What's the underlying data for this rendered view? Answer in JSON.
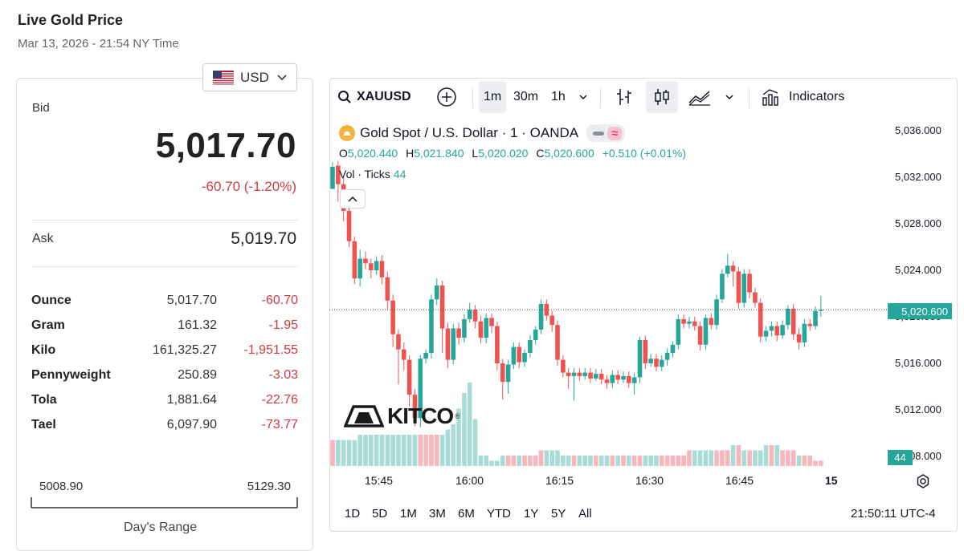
{
  "header": {
    "title": "Live Gold Price",
    "timestamp": "Mar 13, 2026 - 21:54 NY Time"
  },
  "currency": {
    "selected": "USD",
    "flag_icon": "us-flag-icon"
  },
  "quote": {
    "bid_label": "Bid",
    "bid": "5,017.70",
    "change": "-60.70 (-1.20%)",
    "ask_label": "Ask",
    "ask": "5,019.70"
  },
  "units": [
    {
      "name": "Ounce",
      "price": "5,017.70",
      "change": "-60.70"
    },
    {
      "name": "Gram",
      "price": "161.32",
      "change": "-1.95"
    },
    {
      "name": "Kilo",
      "price": "161,325.27",
      "change": "-1,951.55"
    },
    {
      "name": "Pennyweight",
      "price": "250.89",
      "change": "-3.03"
    },
    {
      "name": "Tola",
      "price": "1,881.64",
      "change": "-22.76"
    },
    {
      "name": "Tael",
      "price": "6,097.90",
      "change": "-73.77"
    }
  ],
  "days_range": {
    "low": "5008.90",
    "high": "5129.30",
    "label": "Day's Range"
  },
  "toolbar": {
    "symbol": "XAUUSD",
    "intervals": [
      "1m",
      "30m",
      "1h"
    ],
    "active_interval": "1m",
    "indicators_label": "Indicators"
  },
  "legend": {
    "title": "Gold Spot / U.S. Dollar · 1 · OANDA",
    "o_label": "O",
    "o": "5,020.440",
    "h_label": "H",
    "h": "5,021.840",
    "l_label": "L",
    "l": "5,020.020",
    "c_label": "C",
    "c": "5,020.600",
    "change": "+0.510 (+0.01%)",
    "vol_label": "Vol · Ticks",
    "vol": "44"
  },
  "logo": {
    "text": "KITCO",
    "reg": "®"
  },
  "chart_data": {
    "type": "candlestick",
    "symbol": "XAUUSD",
    "y_ticks": [
      "5,036.000",
      "5,032.000",
      "5,028.000",
      "5,024.000",
      "5,020.000",
      "5,016.000",
      "5,012.000",
      "5,008.000"
    ],
    "x_ticks": [
      "15:45",
      "16:00",
      "16:15",
      "16:30",
      "16:45",
      "15"
    ],
    "last_price": "5,020.600",
    "last_volume": "44",
    "ylim": [
      5008,
      5036
    ],
    "candles": [
      [
        5031.0,
        5032.9,
        5031.2,
        5033.3
      ],
      [
        5033.0,
        5031.4,
        5029.9,
        5033.4
      ],
      [
        5031.4,
        5029.1,
        5028.2,
        5032.0
      ],
      [
        5029.1,
        5026.5,
        5026.0,
        5029.7
      ],
      [
        5026.5,
        5023.3,
        5022.8,
        5026.9
      ],
      [
        5023.3,
        5025.0,
        5022.6,
        5025.8
      ],
      [
        5025.0,
        5024.6,
        5024.1,
        5025.6
      ],
      [
        5024.6,
        5024.0,
        5023.3,
        5025.0
      ],
      [
        5024.0,
        5024.8,
        5023.6,
        5025.2
      ],
      [
        5024.8,
        5023.4,
        5022.8,
        5025.3
      ],
      [
        5023.4,
        5021.4,
        5020.6,
        5023.9
      ],
      [
        5021.4,
        5018.5,
        5017.4,
        5021.9
      ],
      [
        5018.5,
        5017.2,
        5014.2,
        5018.9
      ],
      [
        5017.2,
        5016.3,
        5015.4,
        5017.8
      ],
      [
        5016.3,
        5013.3,
        5012.3,
        5016.7
      ],
      [
        5013.3,
        5011.3,
        5010.6,
        5013.8
      ],
      [
        5011.3,
        5016.4,
        5010.5,
        5016.7
      ],
      [
        5016.4,
        5016.9,
        5016.0,
        5017.2
      ],
      [
        5016.9,
        5021.5,
        5016.4,
        5021.9
      ],
      [
        5021.5,
        5022.7,
        5021.0,
        5023.3
      ],
      [
        5022.7,
        5019.0,
        5016.9,
        5023.1
      ],
      [
        5019.0,
        5016.3,
        5015.6,
        5019.5
      ],
      [
        5016.3,
        5019.0,
        5015.9,
        5019.4
      ],
      [
        5019.0,
        5018.2,
        5017.6,
        5019.5
      ],
      [
        5018.2,
        5019.8,
        5017.8,
        5020.2
      ],
      [
        5019.8,
        5020.6,
        5019.5,
        5021.2
      ],
      [
        5020.6,
        5019.6,
        5019.0,
        5021.0
      ],
      [
        5019.6,
        5018.2,
        5017.7,
        5020.1
      ],
      [
        5018.2,
        5019.9,
        5017.7,
        5020.3
      ],
      [
        5019.9,
        5019.2,
        5018.6,
        5020.3
      ],
      [
        5019.2,
        5016.0,
        5015.4,
        5019.6
      ],
      [
        5016.0,
        5014.4,
        5012.9,
        5016.4
      ],
      [
        5014.4,
        5015.9,
        5013.4,
        5016.3
      ],
      [
        5015.9,
        5017.4,
        5015.5,
        5017.8
      ],
      [
        5017.4,
        5016.1,
        5015.6,
        5017.8
      ],
      [
        5016.1,
        5016.9,
        5015.7,
        5017.2
      ],
      [
        5016.9,
        5018.0,
        5016.5,
        5018.4
      ],
      [
        5018.0,
        5018.9,
        5017.6,
        5019.2
      ],
      [
        5018.9,
        5021.1,
        5018.5,
        5021.5
      ],
      [
        5021.1,
        5020.1,
        5019.7,
        5021.5
      ],
      [
        5020.1,
        5019.3,
        5018.7,
        5020.5
      ],
      [
        5019.3,
        5016.3,
        5015.8,
        5019.7
      ],
      [
        5016.3,
        5015.2,
        5014.8,
        5016.7
      ],
      [
        5015.2,
        5014.9,
        5013.8,
        5015.6
      ],
      [
        5014.9,
        5015.2,
        5012.8,
        5015.6
      ],
      [
        5015.2,
        5014.9,
        5014.5,
        5015.6
      ],
      [
        5014.9,
        5015.2,
        5014.6,
        5015.6
      ],
      [
        5015.2,
        5014.7,
        5014.3,
        5015.6
      ],
      [
        5014.7,
        5015.1,
        5014.5,
        5015.5
      ],
      [
        5015.1,
        5014.6,
        5014.2,
        5015.5
      ],
      [
        5014.6,
        5014.3,
        5013.8,
        5015.0
      ],
      [
        5014.3,
        5015.0,
        5013.9,
        5015.4
      ],
      [
        5015.0,
        5014.6,
        5014.2,
        5015.4
      ],
      [
        5014.6,
        5014.9,
        5014.3,
        5015.3
      ],
      [
        5014.9,
        5014.3,
        5013.9,
        5015.3
      ],
      [
        5014.3,
        5014.8,
        5013.3,
        5015.2
      ],
      [
        5014.8,
        5018.0,
        5014.3,
        5018.3
      ],
      [
        5018.0,
        5016.0,
        5015.5,
        5018.4
      ],
      [
        5016.0,
        5016.4,
        5015.7,
        5016.8
      ],
      [
        5016.4,
        5015.7,
        5015.3,
        5016.8
      ],
      [
        5015.7,
        5016.3,
        5015.3,
        5016.7
      ],
      [
        5016.3,
        5016.9,
        5015.8,
        5017.3
      ],
      [
        5016.9,
        5017.6,
        5016.5,
        5017.9
      ],
      [
        5017.6,
        5019.8,
        5017.2,
        5020.2
      ],
      [
        5019.8,
        5019.4,
        5019.0,
        5020.2
      ],
      [
        5019.4,
        5019.6,
        5019.0,
        5020.0
      ],
      [
        5019.6,
        5019.2,
        5018.8,
        5020.0
      ],
      [
        5019.2,
        5017.6,
        5017.1,
        5019.6
      ],
      [
        5017.6,
        5019.9,
        5017.2,
        5020.2
      ],
      [
        5019.9,
        5019.3,
        5018.9,
        5020.3
      ],
      [
        5019.3,
        5021.5,
        5018.9,
        5021.9
      ],
      [
        5021.5,
        5023.7,
        5021.2,
        5024.1
      ],
      [
        5023.7,
        5024.4,
        5023.4,
        5025.4
      ],
      [
        5024.4,
        5023.9,
        5022.6,
        5024.8
      ],
      [
        5023.9,
        5021.2,
        5020.7,
        5024.3
      ],
      [
        5021.2,
        5023.7,
        5020.8,
        5024.1
      ],
      [
        5023.7,
        5022.1,
        5021.6,
        5024.1
      ],
      [
        5022.1,
        5021.2,
        5020.8,
        5022.5
      ],
      [
        5021.2,
        5018.3,
        5017.8,
        5021.6
      ],
      [
        5018.3,
        5018.8,
        5017.9,
        5019.2
      ],
      [
        5018.8,
        5019.2,
        5018.3,
        5019.6
      ],
      [
        5019.2,
        5018.4,
        5017.9,
        5019.6
      ],
      [
        5018.4,
        5019.3,
        5018.1,
        5019.7
      ],
      [
        5019.3,
        5020.7,
        5018.9,
        5021.0
      ],
      [
        5020.7,
        5018.5,
        5018.0,
        5021.1
      ],
      [
        5018.5,
        5017.8,
        5017.2,
        5019.0
      ],
      [
        5017.8,
        5019.4,
        5017.4,
        5019.8
      ],
      [
        5019.4,
        5019.2,
        5018.8,
        5019.8
      ],
      [
        5019.2,
        5020.5,
        5018.9,
        5020.9
      ],
      [
        5020.5,
        5020.6,
        5020.0,
        5021.8
      ]
    ],
    "volumes": [
      [
        5,
        0
      ],
      [
        5,
        1
      ],
      [
        5,
        1
      ],
      [
        5,
        1
      ],
      [
        5,
        1
      ],
      [
        6,
        1
      ],
      [
        6,
        1
      ],
      [
        6,
        1
      ],
      [
        6,
        1
      ],
      [
        6,
        1
      ],
      [
        6,
        1
      ],
      [
        6,
        1
      ],
      [
        6,
        1
      ],
      [
        6,
        1
      ],
      [
        6,
        1
      ],
      [
        6,
        1
      ],
      [
        6,
        0
      ],
      [
        6,
        0
      ],
      [
        6,
        0
      ],
      [
        6,
        0
      ],
      [
        6,
        1
      ],
      [
        7,
        1
      ],
      [
        8,
        1
      ],
      [
        11,
        1
      ],
      [
        14,
        1
      ],
      [
        16,
        1
      ],
      [
        9,
        1
      ],
      [
        2,
        1
      ],
      [
        2,
        1
      ],
      [
        1,
        1
      ],
      [
        1,
        1
      ],
      [
        2,
        1
      ],
      [
        2,
        0
      ],
      [
        2,
        0
      ],
      [
        2,
        1
      ],
      [
        2,
        0
      ],
      [
        2,
        0
      ],
      [
        2,
        0
      ],
      [
        3,
        0
      ],
      [
        3,
        1
      ],
      [
        3,
        1
      ],
      [
        3,
        1
      ],
      [
        2,
        1
      ],
      [
        2,
        1
      ],
      [
        2,
        0
      ],
      [
        2,
        1
      ],
      [
        2,
        1
      ],
      [
        2,
        1
      ],
      [
        2,
        0
      ],
      [
        2,
        1
      ],
      [
        2,
        1
      ],
      [
        2,
        0
      ],
      [
        2,
        1
      ],
      [
        2,
        0
      ],
      [
        2,
        1
      ],
      [
        2,
        0
      ],
      [
        2,
        0
      ],
      [
        2,
        1
      ],
      [
        2,
        1
      ],
      [
        2,
        1
      ],
      [
        2,
        0
      ],
      [
        2,
        0
      ],
      [
        2,
        0
      ],
      [
        2,
        0
      ],
      [
        2,
        0
      ],
      [
        3,
        0
      ],
      [
        3,
        1
      ],
      [
        3,
        1
      ],
      [
        3,
        1
      ],
      [
        3,
        1
      ],
      [
        3,
        0
      ],
      [
        3,
        0
      ],
      [
        3,
        0
      ],
      [
        4,
        1
      ],
      [
        4,
        0
      ],
      [
        3,
        1
      ],
      [
        3,
        0
      ],
      [
        3,
        1
      ],
      [
        3,
        1
      ],
      [
        4,
        1
      ],
      [
        4,
        0
      ],
      [
        4,
        1
      ],
      [
        3,
        0
      ],
      [
        3,
        0
      ],
      [
        3,
        0
      ],
      [
        2,
        1
      ],
      [
        2,
        0
      ],
      [
        2,
        0
      ],
      [
        1,
        0
      ],
      [
        1,
        0
      ]
    ]
  }
}
